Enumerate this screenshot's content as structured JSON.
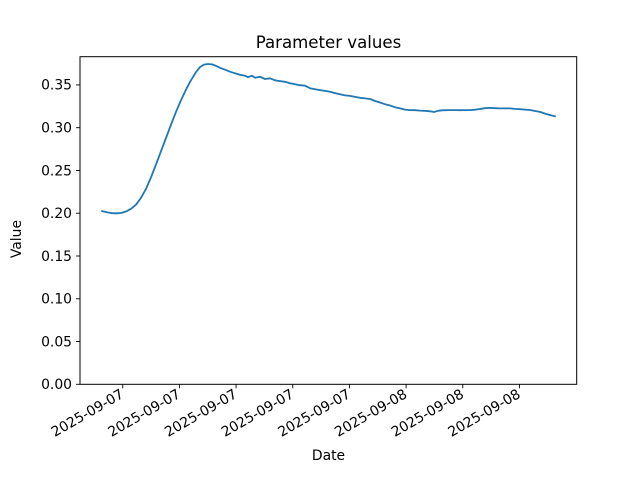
{
  "chart_data": {
    "type": "line",
    "title": "Parameter values",
    "xlabel": "Date",
    "ylabel": "Value",
    "line_color": "#1f77b4",
    "axis_color": "#000000",
    "background_color": "#ffffff",
    "grid": false,
    "legend": null,
    "ylim": [
      0,
      0.383
    ],
    "yticks": {
      "values": [
        0.0,
        0.05,
        0.1,
        0.15,
        0.2,
        0.25,
        0.3,
        0.35
      ],
      "labels": [
        "0.00",
        "0.05",
        "0.10",
        "0.15",
        "0.20",
        "0.25",
        "0.30",
        "0.35"
      ]
    },
    "xticks": {
      "fracs": [
        0.086,
        0.2001,
        0.3142,
        0.4283,
        0.5424,
        0.6565,
        0.7706,
        0.8847
      ],
      "labels": [
        "2025-09-07",
        "2025-09-07",
        "2025-09-07",
        "2025-09-07",
        "2025-09-07",
        "2025-09-08",
        "2025-09-08",
        "2025-09-08"
      ],
      "rotation_deg": 30
    },
    "series": [
      {
        "name": "series1",
        "x_frac": [
          0.0443,
          0.0544,
          0.0644,
          0.0745,
          0.0825,
          0.0926,
          0.1027,
          0.1127,
          0.1228,
          0.1329,
          0.1429,
          0.153,
          0.1631,
          0.1731,
          0.1832,
          0.1933,
          0.2033,
          0.2134,
          0.2235,
          0.2335,
          0.2416,
          0.2496,
          0.2577,
          0.2657,
          0.2738,
          0.2818,
          0.2919,
          0.302,
          0.312,
          0.3221,
          0.3322,
          0.3382,
          0.3463,
          0.3523,
          0.3624,
          0.3724,
          0.3825,
          0.3926,
          0.4026,
          0.4127,
          0.4228,
          0.4328,
          0.4429,
          0.453,
          0.463,
          0.4731,
          0.4832,
          0.4932,
          0.5033,
          0.5134,
          0.5234,
          0.5335,
          0.5436,
          0.5536,
          0.5637,
          0.5738,
          0.5838,
          0.5939,
          0.604,
          0.614,
          0.6241,
          0.6342,
          0.6442,
          0.6543,
          0.6644,
          0.6744,
          0.6845,
          0.6946,
          0.7046,
          0.7127,
          0.7207,
          0.7288,
          0.7369,
          0.7449,
          0.755,
          0.765,
          0.7751,
          0.7852,
          0.7952,
          0.8053,
          0.8154,
          0.8254,
          0.8355,
          0.8456,
          0.8556,
          0.8657,
          0.8758,
          0.8858,
          0.8959,
          0.906,
          0.916,
          0.9261,
          0.9362,
          0.9462,
          0.9563
        ],
        "values": [
          0.2025,
          0.2012,
          0.2,
          0.1999,
          0.2003,
          0.202,
          0.2052,
          0.21,
          0.218,
          0.2285,
          0.242,
          0.257,
          0.2725,
          0.288,
          0.3035,
          0.3185,
          0.332,
          0.3445,
          0.3555,
          0.365,
          0.371,
          0.3738,
          0.3745,
          0.374,
          0.3722,
          0.37,
          0.3678,
          0.3655,
          0.3636,
          0.362,
          0.3608,
          0.359,
          0.3608,
          0.3585,
          0.3596,
          0.3569,
          0.3577,
          0.3554,
          0.3545,
          0.3537,
          0.352,
          0.3507,
          0.3497,
          0.3491,
          0.3462,
          0.345,
          0.344,
          0.343,
          0.342,
          0.3405,
          0.339,
          0.3377,
          0.3372,
          0.336,
          0.335,
          0.3342,
          0.3335,
          0.3312,
          0.3295,
          0.3275,
          0.326,
          0.324,
          0.3225,
          0.3212,
          0.3206,
          0.3204,
          0.32,
          0.3198,
          0.3192,
          0.3183,
          0.3198,
          0.3203,
          0.3205,
          0.3206,
          0.3206,
          0.3205,
          0.3206,
          0.3206,
          0.321,
          0.3218,
          0.3228,
          0.3232,
          0.3228,
          0.3226,
          0.3226,
          0.3225,
          0.322,
          0.3216,
          0.3212,
          0.3207,
          0.3195,
          0.3185,
          0.3165,
          0.3148,
          0.3132
        ]
      }
    ]
  }
}
